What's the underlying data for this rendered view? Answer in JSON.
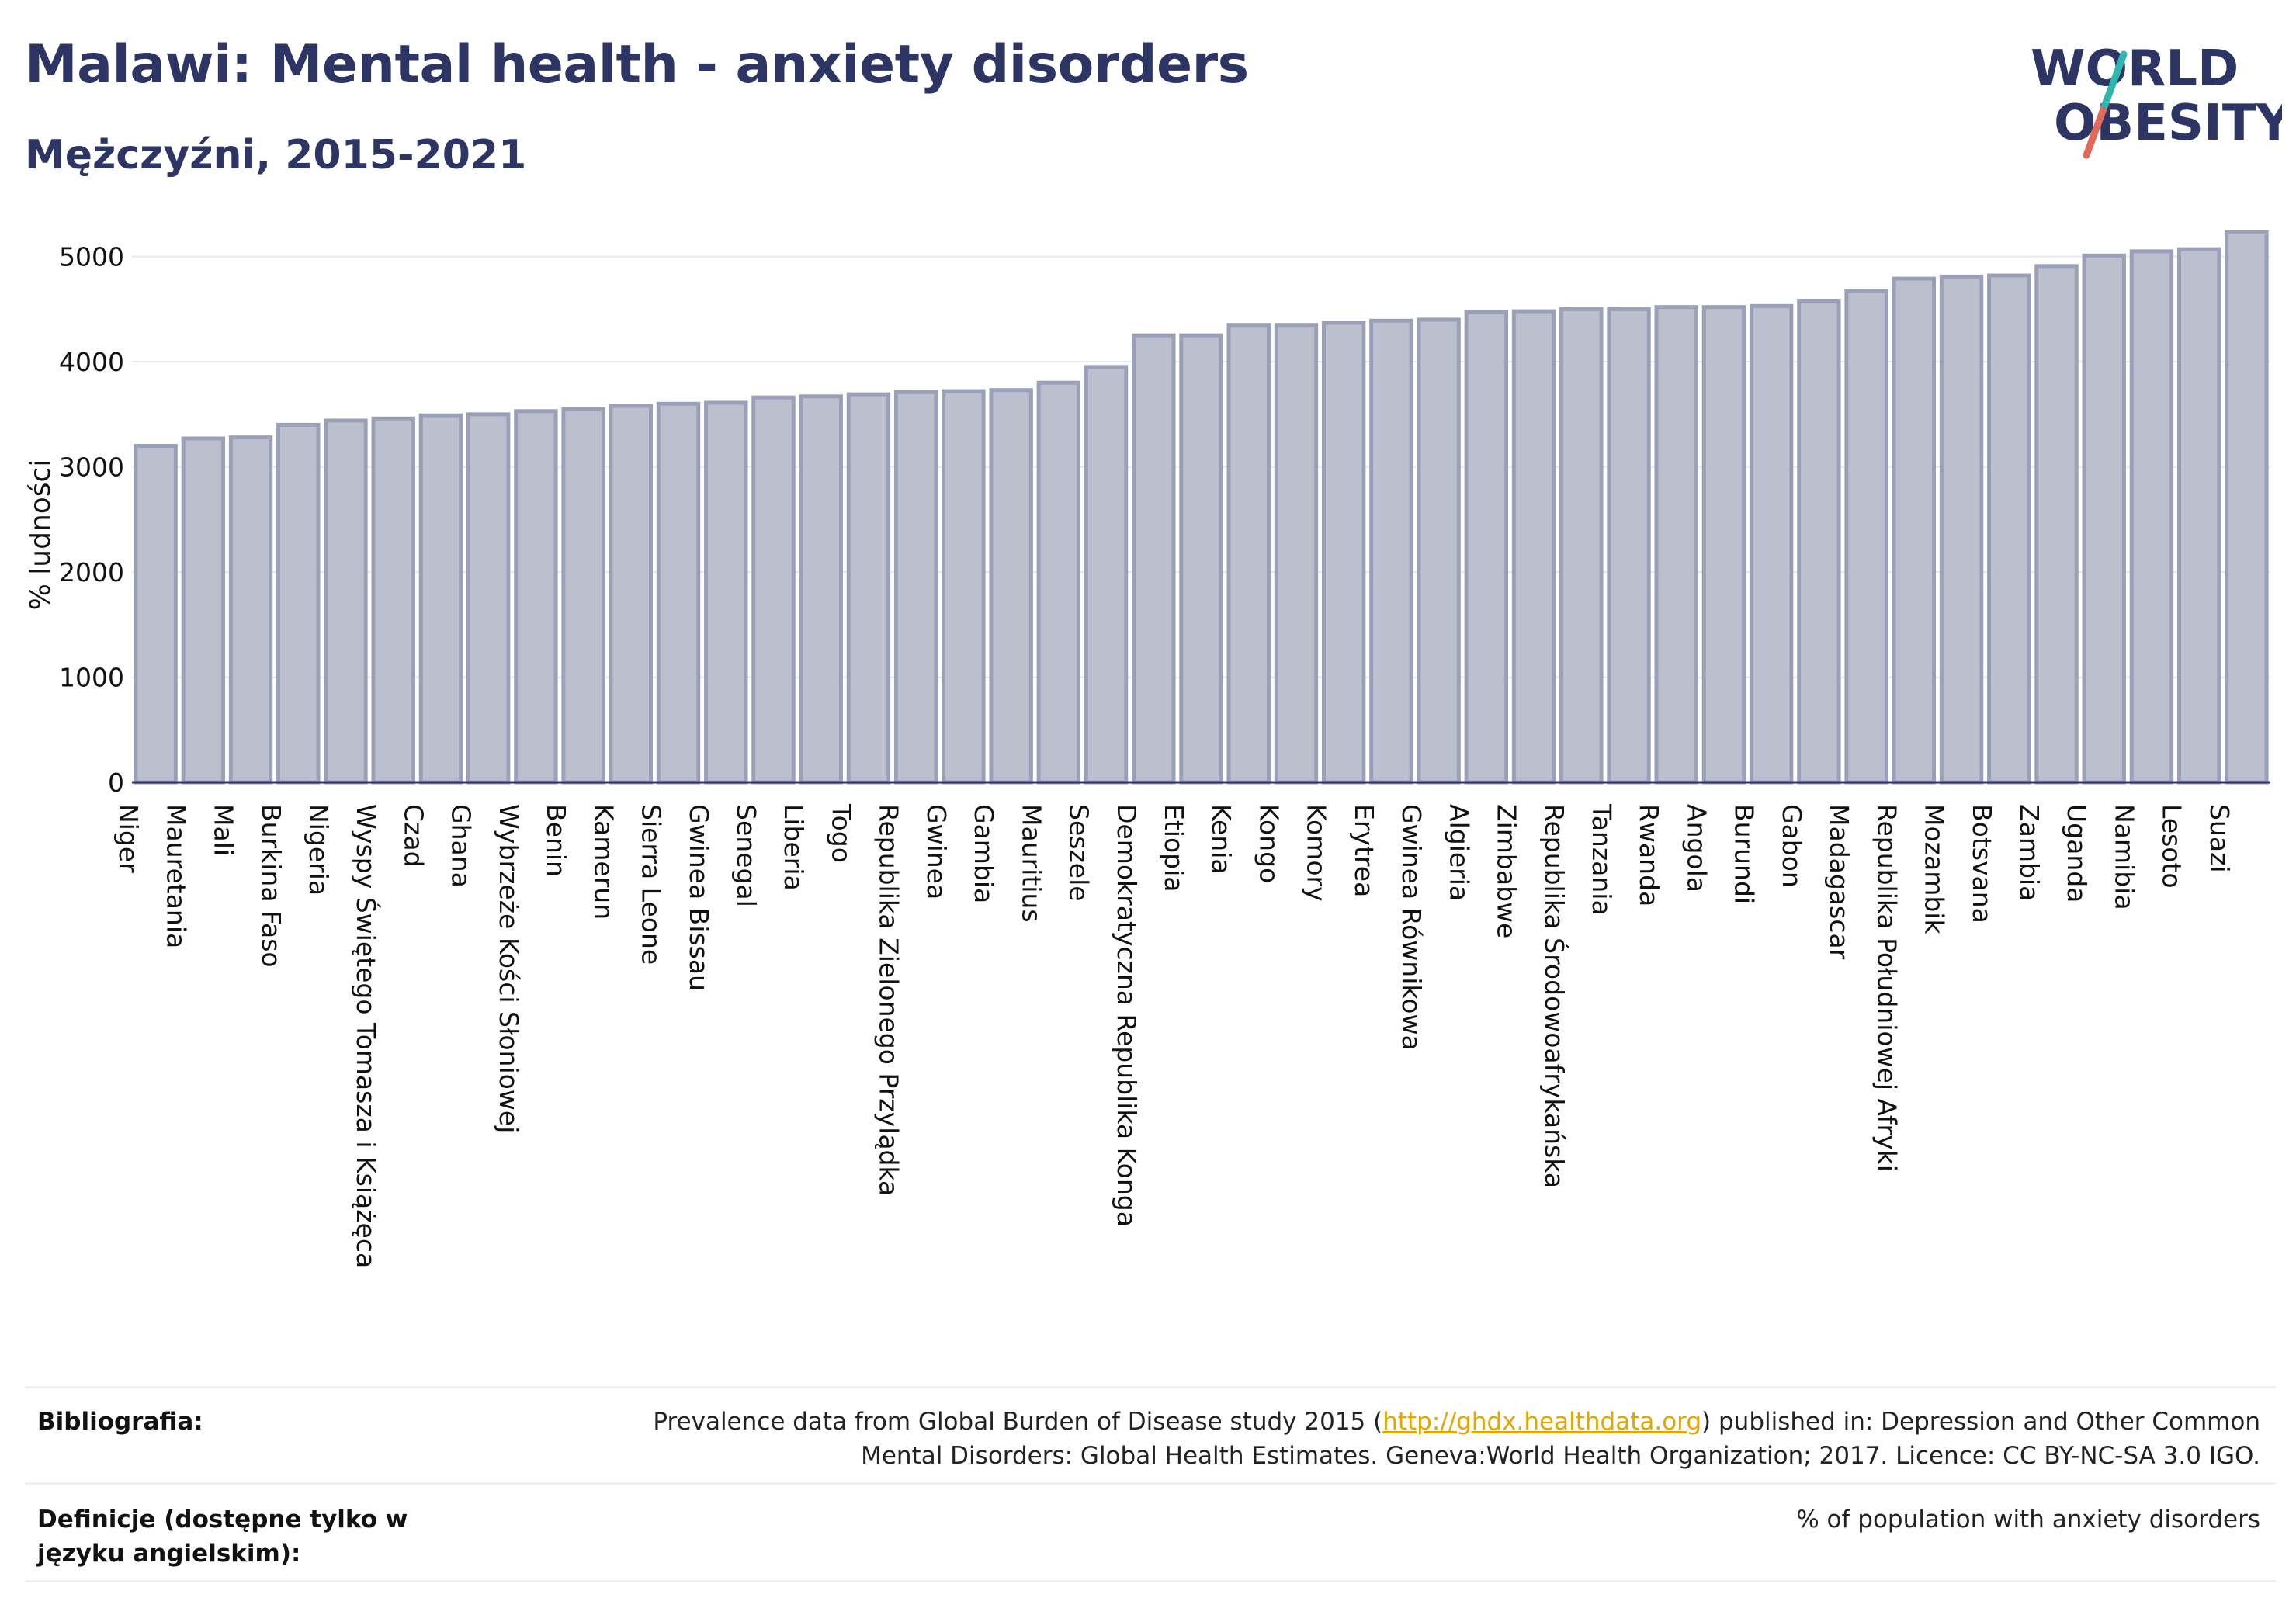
{
  "header": {
    "title": "Malawi: Mental health - anxiety disorders",
    "subtitle": "Mężczyźni, 2015-2021"
  },
  "logo": {
    "line1": "WORLD",
    "line2": "OBESITY"
  },
  "colors": {
    "title": "#2c3563",
    "bar_fill": "#bcc0ce",
    "bar_stroke": "#9aa0b8",
    "logo_teal": "#2fb6ad",
    "logo_red": "#e0695a",
    "link": "#e3a600"
  },
  "chart_data": {
    "type": "bar",
    "ylabel": "% ludności",
    "ylim": [
      0,
      5300
    ],
    "yticks": [
      0,
      1000,
      2000,
      3000,
      4000,
      5000
    ],
    "grid": true,
    "categories": [
      "Niger",
      "Mauretania",
      "Mali",
      "Burkina Faso",
      "Nigeria",
      "Wyspy Świętego Tomasza i Książęca",
      "Czad",
      "Ghana",
      "Wybrzeże Kości Słoniowej",
      "Benin",
      "Kamerun",
      "Sierra Leone",
      "Gwinea Bissau",
      "Senegal",
      "Liberia",
      "Togo",
      "Republika Zielonego Przylądka",
      "Gwinea",
      "Gambia",
      "Mauritius",
      "Seszele",
      "Demokratyczna Republika Konga",
      "Etiopia",
      "Kenia",
      "Kongo",
      "Komory",
      "Erytrea",
      "Gwinea Równikowa",
      "Algieria",
      "Zimbabwe",
      "Republika Środowoafrykańska",
      "Tanzania",
      "Rwanda",
      "Angola",
      "Burundi",
      "Gabon",
      "Madagascar",
      "Republika Południowej Afryki",
      "Mozambik",
      "Botsvana",
      "Zambia",
      "Uganda",
      "Namibia",
      "Lesoto",
      "Suazi"
    ],
    "values": [
      3200,
      3270,
      3280,
      3400,
      3440,
      3460,
      3490,
      3500,
      3530,
      3550,
      3580,
      3600,
      3610,
      3660,
      3670,
      3690,
      3710,
      3720,
      3730,
      3800,
      3950,
      4250,
      4250,
      4350,
      4350,
      4370,
      4390,
      4400,
      4470,
      4480,
      4500,
      4500,
      4520,
      4520,
      4530,
      4580,
      4670,
      4790,
      4810,
      4820,
      4910,
      5010,
      5050,
      5070,
      5230
    ]
  },
  "footer": {
    "bibliography_label": "Bibliografia:",
    "bibliography_line1_pre": "Prevalence data from Global Burden of Disease study 2015 (",
    "bibliography_link": "http://ghdx.healthdata.org",
    "bibliography_line1_post": ") published in: Depression and Other Common",
    "bibliography_line2": "Mental Disorders: Global Health Estimates. Geneva:World Health Organization; 2017. Licence: CC BY-NC-SA 3.0 IGO.",
    "definitions_label": "Definicje (dostępne tylko w języku angielskim):",
    "definitions_text": "% of population with anxiety disorders"
  }
}
